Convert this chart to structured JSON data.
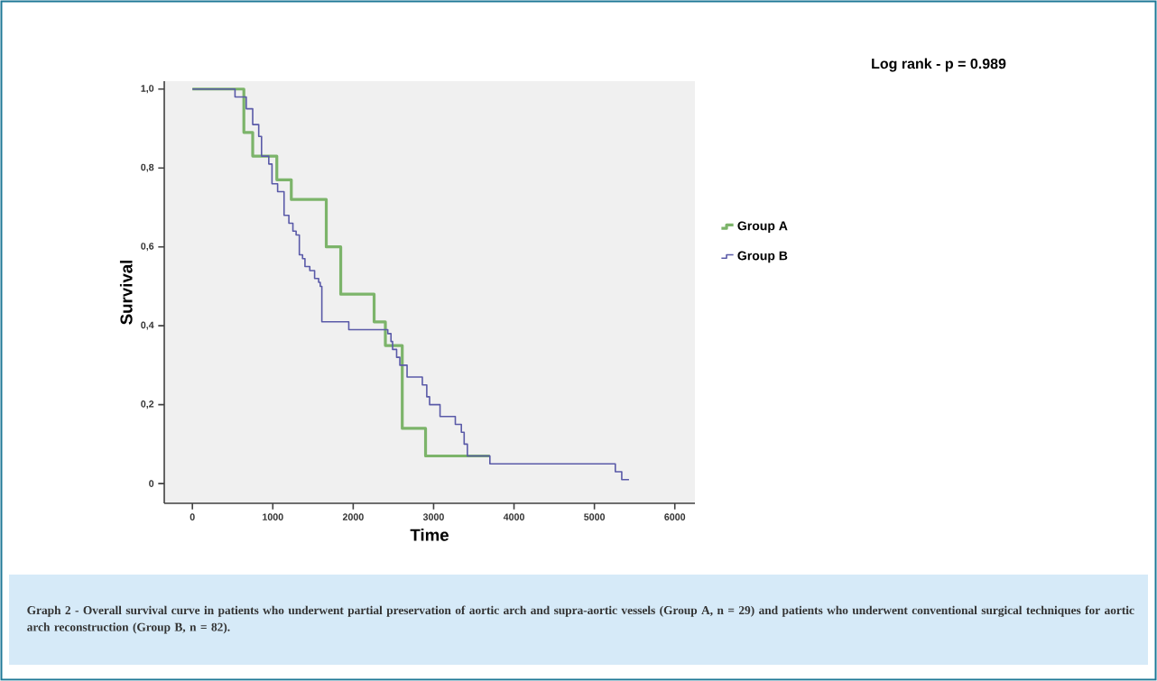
{
  "chart_data": {
    "type": "step",
    "xlabel": "Time",
    "ylabel": "Survival",
    "xlim": [
      -350,
      6250
    ],
    "ylim": [
      -0.05,
      1.02
    ],
    "xticks": [
      0,
      1000,
      2000,
      3000,
      4000,
      5000,
      6000
    ],
    "yticks": [
      0,
      {
        "value": 0.2,
        "label": "0,2"
      },
      {
        "value": 0.4,
        "label": "0,4"
      },
      {
        "value": 0.6,
        "label": "0,6"
      },
      {
        "value": 0.8,
        "label": "0,8"
      },
      {
        "value": 1.0,
        "label": "1,0"
      }
    ],
    "legend": "right",
    "series": [
      {
        "name": "Group A",
        "color": "#7cb46a",
        "x": [
          0,
          640,
          750,
          1050,
          1230,
          1665,
          1845,
          2260,
          2400,
          2610,
          2900,
          3700
        ],
        "values": [
          1.0,
          0.89,
          0.83,
          0.77,
          0.72,
          0.6,
          0.48,
          0.41,
          0.35,
          0.14,
          0.07,
          0.07
        ]
      },
      {
        "name": "Group B",
        "color": "#5a5aa8",
        "x": [
          0,
          530,
          670,
          750,
          825,
          860,
          950,
          990,
          1060,
          1140,
          1200,
          1250,
          1290,
          1330,
          1370,
          1400,
          1460,
          1520,
          1570,
          1590,
          1610,
          1945,
          2410,
          2430,
          2470,
          2490,
          2540,
          2580,
          2670,
          2860,
          2915,
          2950,
          3080,
          3270,
          3345,
          3380,
          3420,
          3700,
          5260,
          5340,
          5430
        ],
        "values": [
          1.0,
          0.98,
          0.95,
          0.91,
          0.88,
          0.83,
          0.81,
          0.76,
          0.74,
          0.68,
          0.66,
          0.64,
          0.63,
          0.58,
          0.57,
          0.55,
          0.54,
          0.52,
          0.51,
          0.5,
          0.41,
          0.39,
          0.39,
          0.38,
          0.36,
          0.34,
          0.32,
          0.3,
          0.27,
          0.25,
          0.22,
          0.2,
          0.17,
          0.15,
          0.13,
          0.1,
          0.07,
          0.05,
          0.03,
          0.01,
          0.01
        ]
      }
    ],
    "annotations": [
      "Log rank - p = 0.989",
      "Graph 2 - Overall survival curve in patients who underwent partial preservation of aortic arch and supra-aortic vessels (Group A, n = 29) and patients who underwent conventional surgical techniques for aortic arch reconstruction (Group B, n = 82)."
    ]
  }
}
